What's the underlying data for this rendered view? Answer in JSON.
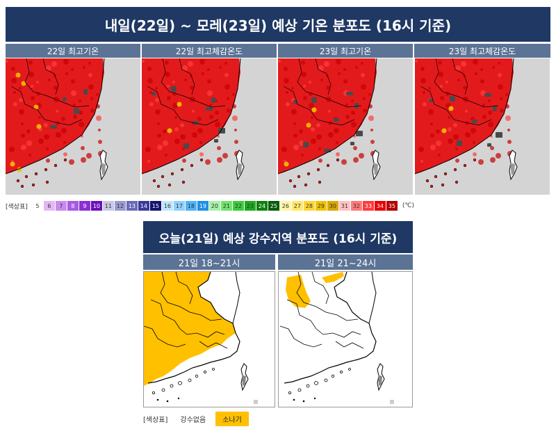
{
  "top": {
    "title": "내일(22일) ~ 모레(23일) 예상 기온 분포도 (16시 기준)",
    "panels": [
      {
        "label": "22일 최고기온"
      },
      {
        "label": "22일 최고체감온도"
      },
      {
        "label": "23일 최고기온"
      },
      {
        "label": "23일 최고체감온도"
      }
    ],
    "legend": {
      "label": "[색상표]",
      "unit": "(℃)",
      "cells": [
        {
          "v": "5",
          "c": "#ffffff",
          "t": "#333"
        },
        {
          "v": "6",
          "c": "#e3b8f5",
          "t": "#333"
        },
        {
          "v": "7",
          "c": "#c88bf0",
          "t": "#333"
        },
        {
          "v": "8",
          "c": "#a95ae3",
          "t": "#fff"
        },
        {
          "v": "9",
          "c": "#8b2fd2",
          "t": "#fff"
        },
        {
          "v": "10",
          "c": "#6c11b8",
          "t": "#fff"
        },
        {
          "v": "11",
          "c": "#c8c8e6",
          "t": "#333"
        },
        {
          "v": "12",
          "c": "#9a9ad2",
          "t": "#333"
        },
        {
          "v": "13",
          "c": "#6a6ab8",
          "t": "#fff"
        },
        {
          "v": "14",
          "c": "#3a3a9c",
          "t": "#fff"
        },
        {
          "v": "15",
          "c": "#14146e",
          "t": "#fff"
        },
        {
          "v": "16",
          "c": "#bfe6ff",
          "t": "#333"
        },
        {
          "v": "17",
          "c": "#8fd0ff",
          "t": "#333"
        },
        {
          "v": "18",
          "c": "#4fb3f7",
          "t": "#333"
        },
        {
          "v": "19",
          "c": "#1f8fe6",
          "t": "#fff"
        },
        {
          "v": "20",
          "c": "#a6f2a6",
          "t": "#333"
        },
        {
          "v": "21",
          "c": "#6fe36f",
          "t": "#333"
        },
        {
          "v": "22",
          "c": "#3dcc3d",
          "t": "#333"
        },
        {
          "v": "23",
          "c": "#1fa81f",
          "t": "#333"
        },
        {
          "v": "24",
          "c": "#0f800f",
          "t": "#fff"
        },
        {
          "v": "25",
          "c": "#0a5c0a",
          "t": "#fff"
        },
        {
          "v": "26",
          "c": "#fff7a8",
          "t": "#333"
        },
        {
          "v": "27",
          "c": "#ffe96b",
          "t": "#333"
        },
        {
          "v": "28",
          "c": "#ffd633",
          "t": "#333"
        },
        {
          "v": "29",
          "c": "#f2c200",
          "t": "#333"
        },
        {
          "v": "30",
          "c": "#d9a900",
          "t": "#333"
        },
        {
          "v": "31",
          "c": "#ffc2c2",
          "t": "#333"
        },
        {
          "v": "32",
          "c": "#ff7a7a",
          "t": "#333"
        },
        {
          "v": "33",
          "c": "#ff3b3b",
          "t": "#fff"
        },
        {
          "v": "34",
          "c": "#e60000",
          "t": "#fff"
        },
        {
          "v": "35",
          "c": "#b30000",
          "t": "#fff"
        }
      ]
    }
  },
  "bottom": {
    "title": "오늘(21일) 예상 강수지역 분포도 (16시 기준)",
    "panels": [
      {
        "label": "21일 18~21시"
      },
      {
        "label": "21일 21~24시"
      }
    ],
    "legend": {
      "label": "[색상표]",
      "no_rain": "강수없음",
      "shower": "소나기"
    }
  },
  "colors": {
    "banner": "#1f3864",
    "panel_header": "#5b7395",
    "heat": "#e31a1c",
    "hot_spot": "#4a4a4a",
    "mild_spot": "#f2c200",
    "shower": "#ffc000",
    "sea": "#d4d4d4"
  }
}
